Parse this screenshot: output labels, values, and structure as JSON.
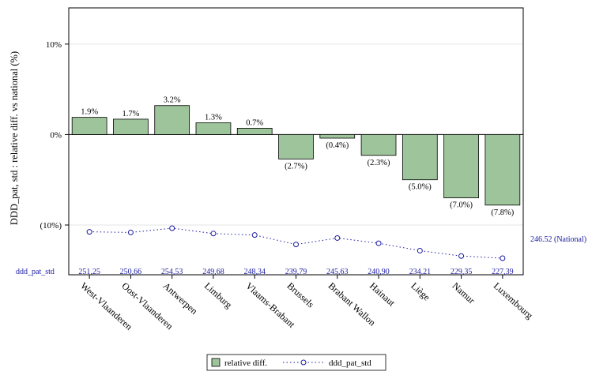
{
  "chart_data": {
    "type": "bar",
    "ylabel": "DDD_pat, std : relative diff. vs national (%)",
    "ylim": [
      -15.5,
      14
    ],
    "y_ticks": [
      10,
      0,
      -10
    ],
    "y_tick_labels": [
      "10%",
      "0%",
      "(10%)"
    ],
    "categories": [
      "West-Vlaanderen",
      "Oost-Vlaanderen",
      "Antwerpen",
      "Limburg",
      "Vlaams-Brabant",
      "Brussels",
      "Brabant Wallon",
      "Hainaut",
      "Liège",
      "Namur",
      "Luxembourg"
    ],
    "series": [
      {
        "name": "relative diff.",
        "color": "#9dc49a",
        "values": [
          1.9,
          1.7,
          3.2,
          1.3,
          0.7,
          -2.7,
          -0.4,
          -2.3,
          -5.0,
          -7.0,
          -7.8
        ],
        "labels": [
          "1.9%",
          "1.7%",
          "3.2%",
          "1.3%",
          "0.7%",
          "(2.7%)",
          "(0.4%)",
          "(2.3%)",
          "(5.0%)",
          "(7.0%)",
          "(7.8%)"
        ]
      },
      {
        "name": "ddd_pat_std",
        "color": "#1a1aa0",
        "values": [
          251.25,
          250.66,
          254.53,
          249.68,
          248.34,
          239.79,
          245.63,
          240.9,
          234.21,
          229.35,
          227.39
        ],
        "labels": [
          "251,25",
          "250,66",
          "254,53",
          "249,68",
          "248,34",
          "239,79",
          "245,63",
          "240,90",
          "234,21",
          "229,35",
          "227,39"
        ],
        "row_label": "ddd_pat_std",
        "reference_label": "246.52 (National)"
      }
    ],
    "legend_position": "bottom",
    "grid": true
  }
}
